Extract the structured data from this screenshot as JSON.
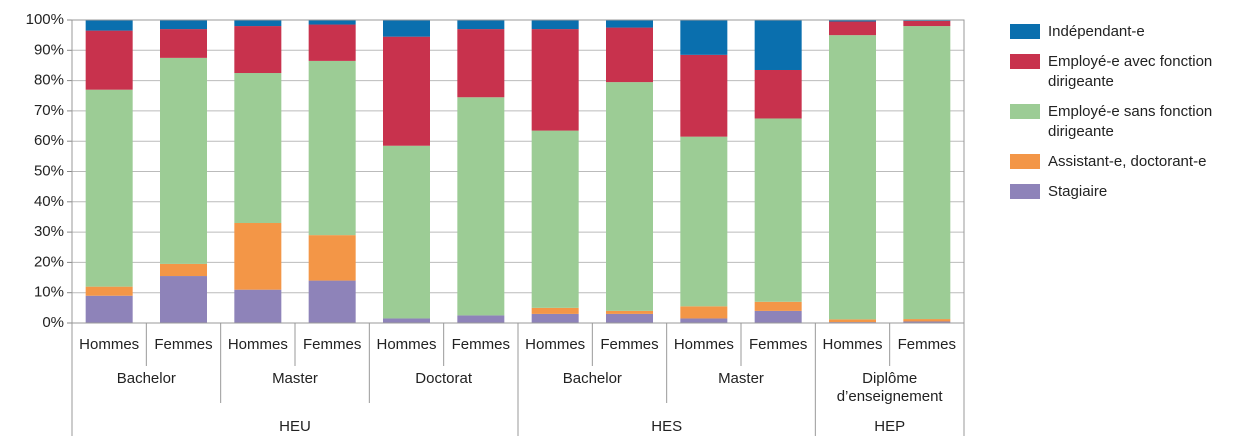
{
  "chart_data": {
    "type": "stacked-bar",
    "groups": [
      {
        "name": "HEU",
        "subgroups": [
          {
            "name": "Bachelor",
            "categories": [
              "Hommes",
              "Femmes"
            ]
          },
          {
            "name": "Master",
            "categories": [
              "Hommes",
              "Femmes"
            ]
          },
          {
            "name": "Doctorat",
            "categories": [
              "Hommes",
              "Femmes"
            ]
          }
        ]
      },
      {
        "name": "HES",
        "subgroups": [
          {
            "name": "Bachelor",
            "categories": [
              "Hommes",
              "Femmes"
            ]
          },
          {
            "name": "Master",
            "categories": [
              "Hommes",
              "Femmes"
            ]
          }
        ]
      },
      {
        "name": "HEP",
        "subgroups": [
          {
            "name": "Diplôme d’enseignement",
            "categories": [
              "Hommes",
              "Femmes"
            ]
          }
        ]
      }
    ],
    "series": [
      {
        "name": "Indépendant-e",
        "color": "#0a6fae",
        "values": [
          3.5,
          3,
          2,
          1.5,
          5.5,
          3,
          3,
          2.5,
          11.5,
          16.5,
          0.5,
          0.3
        ]
      },
      {
        "name": "Employé-e avec fonction dirigeante",
        "color": "#c8324d",
        "values": [
          19.5,
          9.5,
          15.5,
          12,
          36,
          22.5,
          33.5,
          18,
          27,
          16,
          4.5,
          1.7
        ]
      },
      {
        "name": "Employé-e sans fonction dirigeante",
        "color": "#9ccc95",
        "values": [
          65,
          68,
          49.5,
          57.5,
          57,
          72,
          58.5,
          75.5,
          56,
          60.5,
          93.8,
          96.7
        ]
      },
      {
        "name": "Assistant-e, doctorant-e",
        "color": "#f39647",
        "values": [
          3,
          4,
          22,
          15,
          0,
          0,
          2,
          1,
          4,
          3,
          0.9,
          0.8
        ]
      },
      {
        "name": "Stagiaire",
        "color": "#8e83b9",
        "values": [
          9,
          15.5,
          11,
          14,
          1.5,
          2.5,
          3,
          3,
          1.5,
          4,
          0.3,
          0.5
        ]
      }
    ],
    "ylim": [
      0,
      100
    ],
    "yticks": [
      {
        "value": 0,
        "label": "0%"
      },
      {
        "value": 10,
        "label": "10%"
      },
      {
        "value": 20,
        "label": "20%"
      },
      {
        "value": 30,
        "label": "30%"
      },
      {
        "value": 40,
        "label": "40%"
      },
      {
        "value": 50,
        "label": "50%"
      },
      {
        "value": 60,
        "label": "60%"
      },
      {
        "value": 70,
        "label": "70%"
      },
      {
        "value": 80,
        "label": "80%"
      },
      {
        "value": 90,
        "label": "90%"
      },
      {
        "value": 100,
        "label": "100%"
      }
    ],
    "grid": true
  }
}
